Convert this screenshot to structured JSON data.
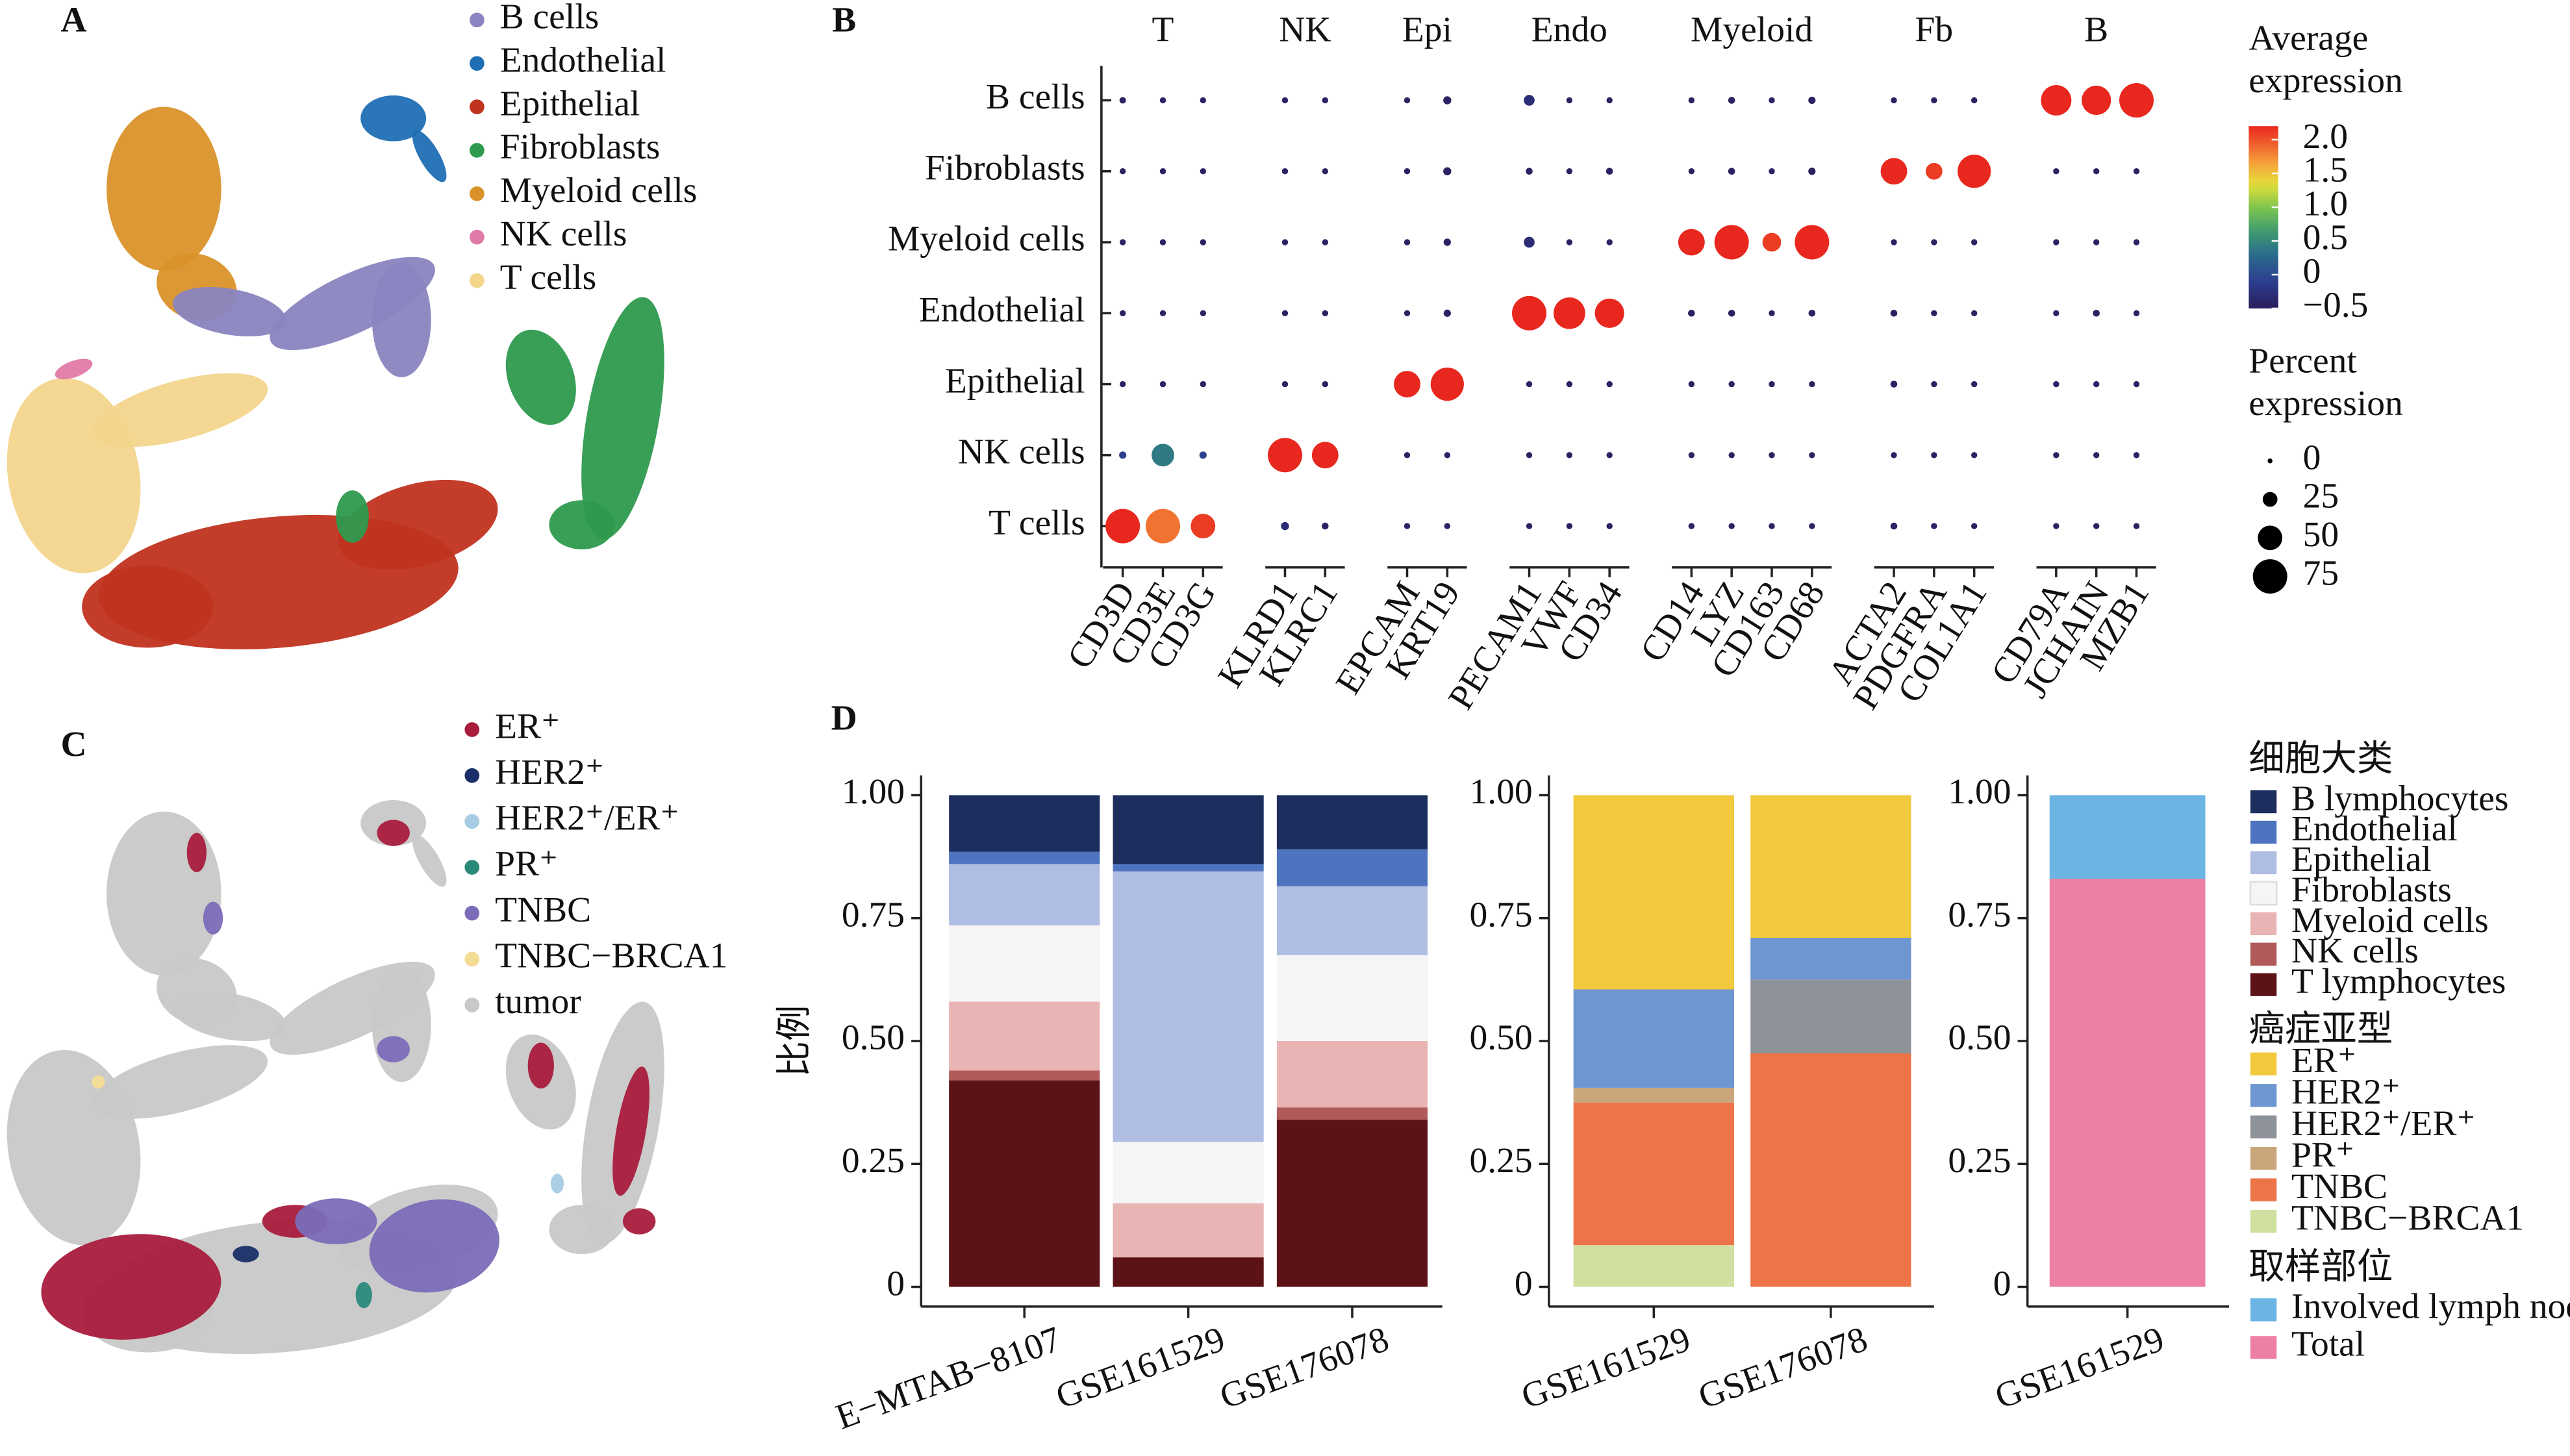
{
  "chart_data": [
    {
      "type": "scatter",
      "panel": "A",
      "series": [
        {
          "name": "B cells",
          "color": "#8a84c0"
        },
        {
          "name": "Endothelial",
          "color": "#1f6fb5"
        },
        {
          "name": "Epithelial",
          "color": "#c0331f"
        },
        {
          "name": "Fibroblasts",
          "color": "#2e9a4e"
        },
        {
          "name": "Myeloid cells",
          "color": "#d9922a"
        },
        {
          "name": "NK cells",
          "color": "#e07aa8"
        },
        {
          "name": "T cells",
          "color": "#f3d58c"
        }
      ]
    },
    {
      "type": "dot",
      "panel": "B",
      "groups": [
        {
          "name": "T",
          "genes": [
            "CD3D",
            "CD3E",
            "CD3G"
          ]
        },
        {
          "name": "NK",
          "genes": [
            "KLRD1",
            "KLRC1"
          ]
        },
        {
          "name": "Epi",
          "genes": [
            "EPCAM",
            "KRT19"
          ]
        },
        {
          "name": "Endo",
          "genes": [
            "PECAM1",
            "VWF",
            "CD34"
          ]
        },
        {
          "name": "Myeloid",
          "genes": [
            "CD14",
            "LYZ",
            "CD163",
            "CD68"
          ]
        },
        {
          "name": "Fb",
          "genes": [
            "ACTA2",
            "PDGFRA",
            "COL1A1"
          ]
        },
        {
          "name": "B",
          "genes": [
            "CD79A",
            "JCHAIN",
            "MZB1"
          ]
        }
      ],
      "rows": [
        "B cells",
        "Fibroblasts",
        "Myeloid cells",
        "Endothelial",
        "Epithelial",
        "NK cells",
        "T cells"
      ],
      "expression": [
        [
          -0.45,
          -0.45,
          -0.45,
          -0.45,
          -0.45,
          -0.45,
          -0.45,
          -0.3,
          -0.45,
          -0.45,
          -0.45,
          -0.45,
          -0.45,
          -0.45,
          -0.45,
          -0.45,
          -0.45,
          2.2,
          2.2,
          2.2
        ],
        [
          -0.45,
          -0.45,
          -0.45,
          -0.45,
          -0.45,
          -0.45,
          -0.45,
          -0.45,
          -0.45,
          -0.45,
          -0.45,
          -0.45,
          -0.45,
          -0.45,
          2.2,
          2.1,
          2.2,
          -0.45,
          -0.45,
          -0.45
        ],
        [
          -0.45,
          -0.45,
          -0.45,
          -0.45,
          -0.45,
          -0.45,
          -0.45,
          -0.3,
          -0.45,
          -0.45,
          2.2,
          2.2,
          2.1,
          2.2,
          -0.45,
          -0.45,
          -0.45,
          -0.45,
          -0.45,
          -0.45
        ],
        [
          -0.45,
          -0.45,
          -0.45,
          -0.45,
          -0.45,
          -0.45,
          -0.45,
          2.2,
          2.2,
          2.2,
          -0.45,
          -0.45,
          -0.45,
          -0.45,
          -0.45,
          -0.45,
          -0.45,
          -0.45,
          -0.45,
          -0.45
        ],
        [
          -0.45,
          -0.45,
          -0.45,
          -0.45,
          -0.45,
          2.2,
          2.2,
          -0.45,
          -0.45,
          -0.45,
          -0.45,
          -0.45,
          -0.45,
          -0.45,
          -0.45,
          -0.45,
          -0.45,
          -0.45,
          -0.45,
          -0.45
        ],
        [
          -0.1,
          0.4,
          -0.1,
          2.2,
          2.2,
          -0.45,
          -0.45,
          -0.45,
          -0.45,
          -0.45,
          -0.45,
          -0.45,
          -0.45,
          -0.45,
          -0.45,
          -0.45,
          -0.45,
          -0.45,
          -0.45,
          -0.45
        ],
        [
          2.2,
          1.85,
          2.1,
          -0.3,
          -0.45,
          -0.45,
          -0.45,
          -0.45,
          -0.45,
          -0.45,
          -0.45,
          -0.45,
          -0.45,
          -0.45,
          -0.45,
          -0.45,
          -0.45,
          -0.45,
          -0.45,
          -0.45
        ]
      ],
      "percent": [
        [
          4,
          3,
          3,
          3,
          3,
          3,
          8,
          15,
          3,
          3,
          3,
          5,
          3,
          6,
          3,
          3,
          3,
          65,
          62,
          75
        ],
        [
          3,
          3,
          3,
          3,
          3,
          3,
          8,
          5,
          3,
          5,
          3,
          5,
          3,
          6,
          55,
          30,
          72,
          3,
          3,
          3
        ],
        [
          3,
          3,
          3,
          3,
          3,
          3,
          6,
          15,
          3,
          3,
          55,
          75,
          35,
          75,
          3,
          3,
          3,
          3,
          3,
          3
        ],
        [
          3,
          3,
          3,
          3,
          3,
          3,
          6,
          75,
          68,
          62,
          5,
          5,
          3,
          5,
          5,
          3,
          3,
          3,
          5,
          3
        ],
        [
          3,
          3,
          3,
          3,
          3,
          55,
          72,
          3,
          3,
          3,
          3,
          3,
          3,
          3,
          5,
          3,
          3,
          3,
          3,
          3
        ],
        [
          6,
          45,
          6,
          75,
          55,
          3,
          3,
          3,
          3,
          3,
          3,
          3,
          3,
          3,
          3,
          3,
          3,
          3,
          3,
          3
        ],
        [
          75,
          75,
          50,
          8,
          5,
          3,
          3,
          3,
          3,
          3,
          3,
          3,
          3,
          3,
          5,
          3,
          3,
          3,
          3,
          3
        ]
      ],
      "clim": [
        -0.5,
        2.2
      ],
      "colorbar_title": [
        "Average",
        "expression"
      ],
      "colorbar_ticks": [
        {
          "value": 2,
          "label": "2.0"
        },
        1.5,
        {
          "value": 1,
          "label": "1.0"
        },
        0.5,
        0,
        {
          "value": -0.5,
          "label": "−0.5"
        }
      ],
      "size_title": [
        "Percent",
        "expression"
      ],
      "size_ticks": [
        0,
        25,
        50,
        75
      ]
    },
    {
      "type": "scatter",
      "panel": "C",
      "series": [
        {
          "name": "ER⁺",
          "color": "#a81c3c"
        },
        {
          "name": "HER2⁺",
          "color": "#1a2f6a"
        },
        {
          "name": "HER2⁺/ER⁺",
          "color": "#a8cce4"
        },
        {
          "name": "PR⁺",
          "color": "#2a8a7a"
        },
        {
          "name": "TNBC",
          "color": "#7b6bb8"
        },
        {
          "name": "TNBC−BRCA1",
          "color": "#f4dc94"
        },
        {
          "name": "tumor",
          "color": "#c8c8c8"
        }
      ]
    },
    {
      "type": "bar",
      "panel": "D",
      "ylabel": "比例",
      "legend_title": "细胞大类",
      "categories": [
        "E−MTAB−8107",
        "GSE161529",
        "GSE176078"
      ],
      "ylim": [
        0,
        1
      ],
      "yticks": [
        0,
        0.25,
        {
          "value": 0.5,
          "label": "0.50"
        },
        0.75,
        {
          "value": 1,
          "label": "1.00"
        }
      ],
      "series": [
        {
          "name": "B lymphocytes",
          "color": "#1c2e5e",
          "values": [
            0.115,
            0.14,
            0.11
          ]
        },
        {
          "name": "Endothelial",
          "color": "#4f74bf",
          "values": [
            0.025,
            0.015,
            0.075
          ]
        },
        {
          "name": "Epithelial",
          "color": "#b0bde3",
          "values": [
            0.125,
            0.55,
            0.14
          ]
        },
        {
          "name": "Fibroblasts",
          "color": "#f5f5f5",
          "values": [
            0.155,
            0.125,
            0.175
          ]
        },
        {
          "name": "Myeloid cells",
          "color": "#e8b4b4",
          "values": [
            0.14,
            0.11,
            0.135
          ]
        },
        {
          "name": "NK cells",
          "color": "#b05a5a",
          "values": [
            0.02,
            0,
            0.025
          ]
        },
        {
          "name": "T lymphocytes",
          "color": "#5c1216",
          "values": [
            0.42,
            0.06,
            0.34
          ]
        }
      ]
    },
    {
      "type": "bar",
      "legend_title": "癌症亚型",
      "categories": [
        "GSE161529",
        "GSE176078"
      ],
      "ylim": [
        0,
        1
      ],
      "yticks": [
        0,
        0.25,
        {
          "value": 0.5,
          "label": "0.50"
        },
        0.75,
        {
          "value": 1,
          "label": "1.00"
        }
      ],
      "series": [
        {
          "name": "ER⁺",
          "color": "#f2c83c",
          "values": [
            0.395,
            0.29
          ]
        },
        {
          "name": "HER2⁺",
          "color": "#6e96d0",
          "values": [
            0.2,
            0.085
          ]
        },
        {
          "name": "HER2⁺/ER⁺",
          "color": "#8e9299",
          "values": [
            0,
            0.15
          ]
        },
        {
          "name": "PR⁺",
          "color": "#c9a57c",
          "values": [
            0.03,
            0
          ]
        },
        {
          "name": "TNBC",
          "color": "#ec7448",
          "values": [
            0.29,
            0.475
          ]
        },
        {
          "name": "TNBC−BRCA1",
          "color": "#cfe0a0",
          "values": [
            0.085,
            0
          ]
        }
      ]
    },
    {
      "type": "bar",
      "legend_title": "取样部位",
      "categories": [
        "GSE161529"
      ],
      "ylim": [
        0,
        1
      ],
      "yticks": [
        0,
        0.25,
        {
          "value": 0.5,
          "label": "0.50"
        },
        0.75,
        {
          "value": 1,
          "label": "1.00"
        }
      ],
      "series": [
        {
          "name": "Involved lymph node",
          "color": "#6cb4e4",
          "values": [
            0.17
          ]
        },
        {
          "name": "Total",
          "color": "#ec7fa3",
          "values": [
            0.83
          ]
        }
      ]
    }
  ]
}
